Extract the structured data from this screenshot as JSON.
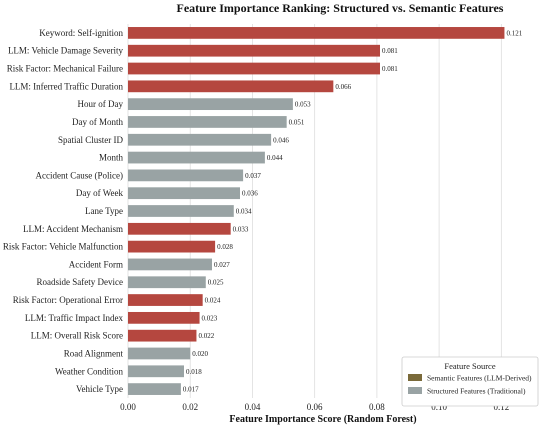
{
  "chart_data": {
    "type": "bar",
    "orientation": "horizontal",
    "title": "Feature Importance Ranking: Structured vs. Semantic Features",
    "xlabel": "Feature Importance Score (Random Forest)",
    "ylabel": "",
    "xlim": [
      0,
      0.126
    ],
    "xticks": [
      "0.00",
      "0.02",
      "0.04",
      "0.06",
      "0.08",
      "0.10",
      "0.12"
    ],
    "grid": "vertical",
    "legend": {
      "title": "Feature Source",
      "position": "bottom-right",
      "entries": [
        {
          "label": "Semantic Features (LLM-Derived)",
          "color": "#7a6a3a"
        },
        {
          "label": "Structured Features (Traditional)",
          "color": "#99a3a4"
        }
      ]
    },
    "colors": {
      "semantic": "#b5473f",
      "structured": "#99a3a4",
      "semantic_alt": "#7a6a3a"
    },
    "bars": [
      {
        "label": "Keyword: Self-ignition",
        "value": 0.121,
        "value_label": "0.121",
        "source": "semantic"
      },
      {
        "label": "LLM: Vehicle Damage Severity",
        "value": 0.081,
        "value_label": "0.081",
        "source": "semantic"
      },
      {
        "label": "Risk Factor: Mechanical Failure",
        "value": 0.081,
        "value_label": "0.081",
        "source": "semantic"
      },
      {
        "label": "LLM: Inferred Traffic Duration",
        "value": 0.066,
        "value_label": "0.066",
        "source": "semantic"
      },
      {
        "label": "Hour of Day",
        "value": 0.053,
        "value_label": "0.053",
        "source": "structured"
      },
      {
        "label": "Day of Month",
        "value": 0.051,
        "value_label": "0.051",
        "source": "structured"
      },
      {
        "label": "Spatial Cluster ID",
        "value": 0.046,
        "value_label": "0.046",
        "source": "structured"
      },
      {
        "label": "Month",
        "value": 0.044,
        "value_label": "0.044",
        "source": "structured"
      },
      {
        "label": "Accident Cause (Police)",
        "value": 0.037,
        "value_label": "0.037",
        "source": "structured"
      },
      {
        "label": "Day of Week",
        "value": 0.036,
        "value_label": "0.036",
        "source": "structured"
      },
      {
        "label": "Lane Type",
        "value": 0.034,
        "value_label": "0.034",
        "source": "structured"
      },
      {
        "label": "LLM: Accident Mechanism",
        "value": 0.033,
        "value_label": "0.033",
        "source": "semantic"
      },
      {
        "label": "Risk Factor: Vehicle Malfunction",
        "value": 0.028,
        "value_label": "0.028",
        "source": "semantic"
      },
      {
        "label": "Accident Form",
        "value": 0.027,
        "value_label": "0.027",
        "source": "structured"
      },
      {
        "label": "Roadside Safety Device",
        "value": 0.025,
        "value_label": "0.025",
        "source": "structured"
      },
      {
        "label": "Risk Factor: Operational Error",
        "value": 0.024,
        "value_label": "0.024",
        "source": "semantic"
      },
      {
        "label": "LLM: Traffic Impact Index",
        "value": 0.023,
        "value_label": "0.023",
        "source": "semantic"
      },
      {
        "label": "LLM: Overall Risk Score",
        "value": 0.022,
        "value_label": "0.022",
        "source": "semantic"
      },
      {
        "label": "Road Alignment",
        "value": 0.02,
        "value_label": "0.020",
        "source": "structured"
      },
      {
        "label": "Weather Condition",
        "value": 0.018,
        "value_label": "0.018",
        "source": "structured"
      },
      {
        "label": "Vehicle Type",
        "value": 0.017,
        "value_label": "0.017",
        "source": "structured"
      }
    ]
  }
}
